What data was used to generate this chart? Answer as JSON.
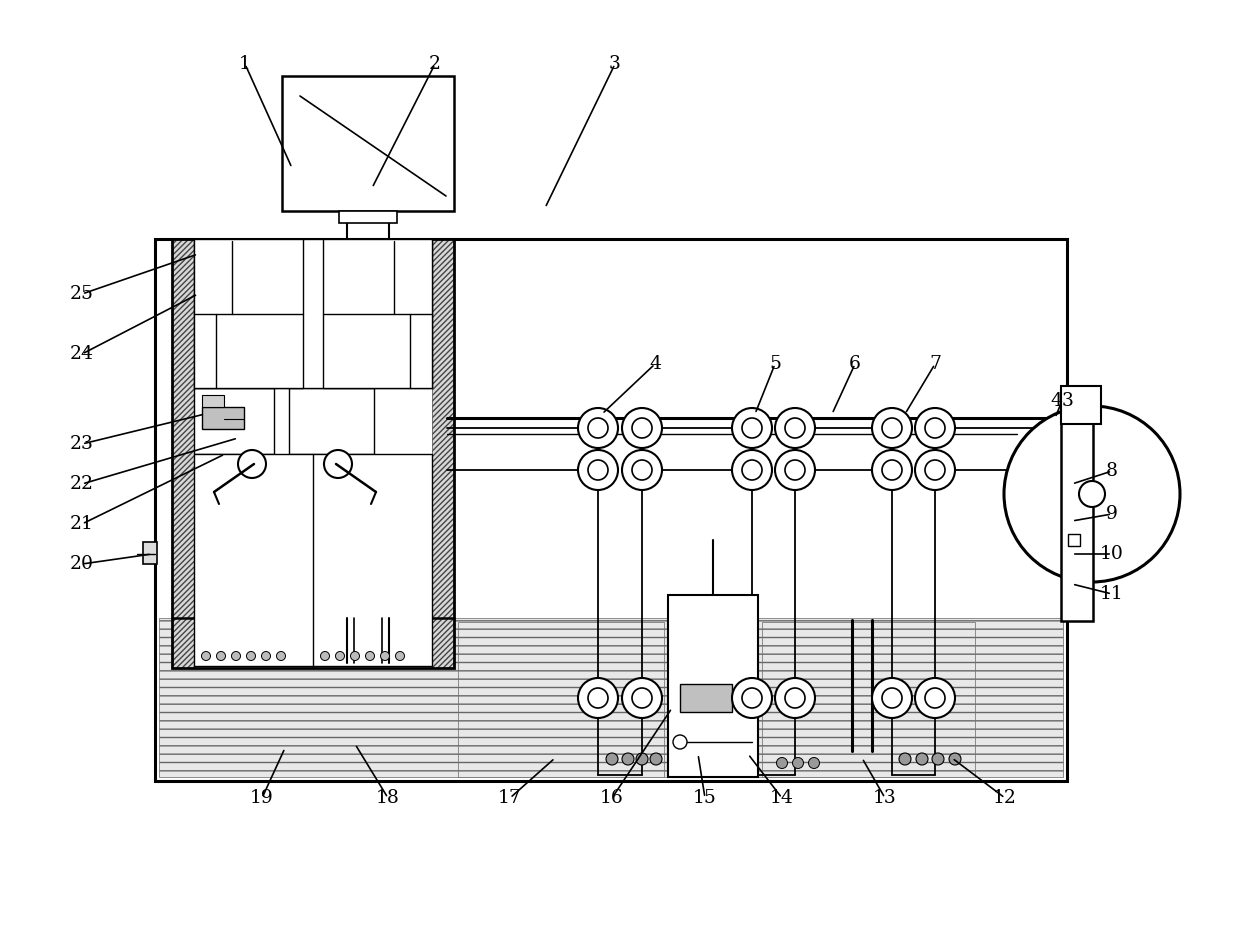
{
  "bg": "#ffffff",
  "lc": "#000000",
  "fig_w": 12.4,
  "fig_h": 9.26,
  "dpi": 100,
  "leaders": [
    [
      "1",
      2.45,
      8.62,
      2.92,
      7.58
    ],
    [
      "2",
      4.35,
      8.62,
      3.72,
      7.38
    ],
    [
      "3",
      6.15,
      8.62,
      5.45,
      7.18
    ],
    [
      "4",
      6.55,
      5.62,
      6.02,
      5.12
    ],
    [
      "5",
      7.75,
      5.62,
      7.55,
      5.12
    ],
    [
      "6",
      8.55,
      5.62,
      8.32,
      5.12
    ],
    [
      "7",
      9.35,
      5.62,
      9.05,
      5.12
    ],
    [
      "43",
      10.62,
      5.25,
      10.55,
      5.08
    ],
    [
      "8",
      11.12,
      4.55,
      10.72,
      4.42
    ],
    [
      "9",
      11.12,
      4.12,
      10.72,
      4.05
    ],
    [
      "10",
      11.12,
      3.72,
      10.72,
      3.72
    ],
    [
      "11",
      11.12,
      3.32,
      10.72,
      3.42
    ],
    [
      "12",
      10.05,
      1.28,
      9.52,
      1.68
    ],
    [
      "13",
      8.85,
      1.28,
      8.62,
      1.68
    ],
    [
      "14",
      7.82,
      1.28,
      7.48,
      1.72
    ],
    [
      "15",
      7.05,
      1.28,
      6.98,
      1.72
    ],
    [
      "16",
      6.12,
      1.28,
      6.72,
      2.18
    ],
    [
      "17",
      5.1,
      1.28,
      5.55,
      1.68
    ],
    [
      "18",
      3.88,
      1.28,
      3.55,
      1.82
    ],
    [
      "19",
      2.62,
      1.28,
      2.85,
      1.78
    ],
    [
      "20",
      0.82,
      3.62,
      1.52,
      3.72
    ],
    [
      "21",
      0.82,
      4.02,
      2.25,
      4.72
    ],
    [
      "22",
      0.82,
      4.42,
      2.38,
      4.88
    ],
    [
      "23",
      0.82,
      4.82,
      2.05,
      5.12
    ],
    [
      "24",
      0.82,
      5.72,
      1.98,
      6.32
    ],
    [
      "25",
      0.82,
      6.32,
      1.98,
      6.72
    ]
  ]
}
